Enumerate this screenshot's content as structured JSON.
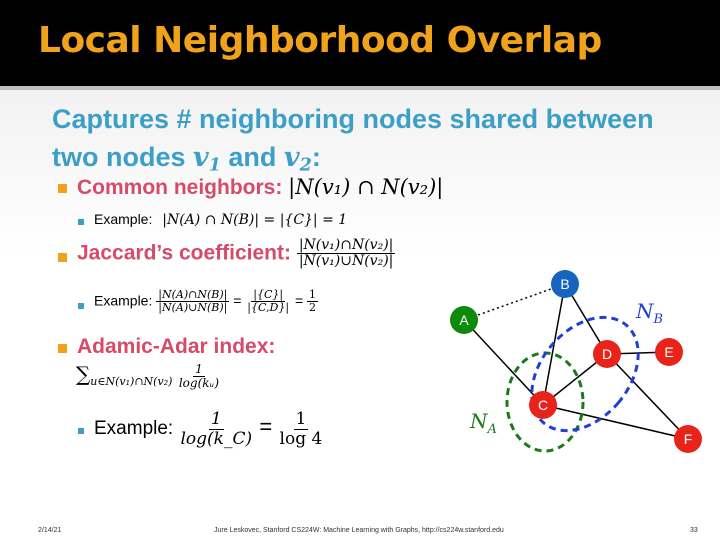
{
  "slide": {
    "title": "Local Neighborhood Overlap",
    "lead_line1": "Captures # neighboring nodes shared between",
    "lead_line2_pre": "two nodes ",
    "lead_and": " and ",
    "lead_colon": ":",
    "v": "v",
    "sub1": "1",
    "sub2": "2",
    "common": {
      "label": "Common neighbors: ",
      "formula": "|N(v₁) ∩ N(v₂)|",
      "example_label": "Example: ",
      "example_formula": "|N(A) ∩ N(B)| = |{C}| = 1"
    },
    "jaccard": {
      "label": "Jaccard’s coefficient: ",
      "num": "|N(v₁)∩N(v₂)|",
      "den": "|N(v₁)∪N(v₂)|",
      "example_label": "Example: ",
      "ex_num1": "|N(A)∩N(B)|",
      "ex_den1": "|N(A)∪N(B)|",
      "eq": "=",
      "ex_num2": "|{C}|",
      "ex_den2": "|{C,D}|",
      "ex_num3": "1",
      "ex_den3": "2"
    },
    "adamic": {
      "label": "Adamic-Adar index:",
      "sum": "∑",
      "sum_sub": "u∈N(v₁)∩N(v₂)",
      "num": "1",
      "den": "log(kᵤ)",
      "example_label": "Example: ",
      "ex_num1": "1",
      "ex_den1": "log(k_C)",
      "eq": "=",
      "ex_num2": "1",
      "ex_den2": "log 4"
    },
    "graph": {
      "nodes": [
        {
          "id": "A",
          "color": "#0b8a0b"
        },
        {
          "id": "B",
          "color": "#1565c0"
        },
        {
          "id": "C",
          "color": "#e8241a"
        },
        {
          "id": "D",
          "color": "#e8241a"
        },
        {
          "id": "E",
          "color": "#e8241a"
        },
        {
          "id": "F",
          "color": "#e8241a"
        }
      ],
      "label_NA": "N",
      "label_NA_sub": "A",
      "label_NB": "N",
      "label_NB_sub": "B",
      "NA_color": "#1a7a1a",
      "NB_color": "#1f3fd6"
    },
    "footer": {
      "date": "2/14/21",
      "credit": "Jure Leskovec, Stanford CS224W: Machine Learning with Graphs, http://cs224w.stanford.edu",
      "page": "33"
    }
  }
}
